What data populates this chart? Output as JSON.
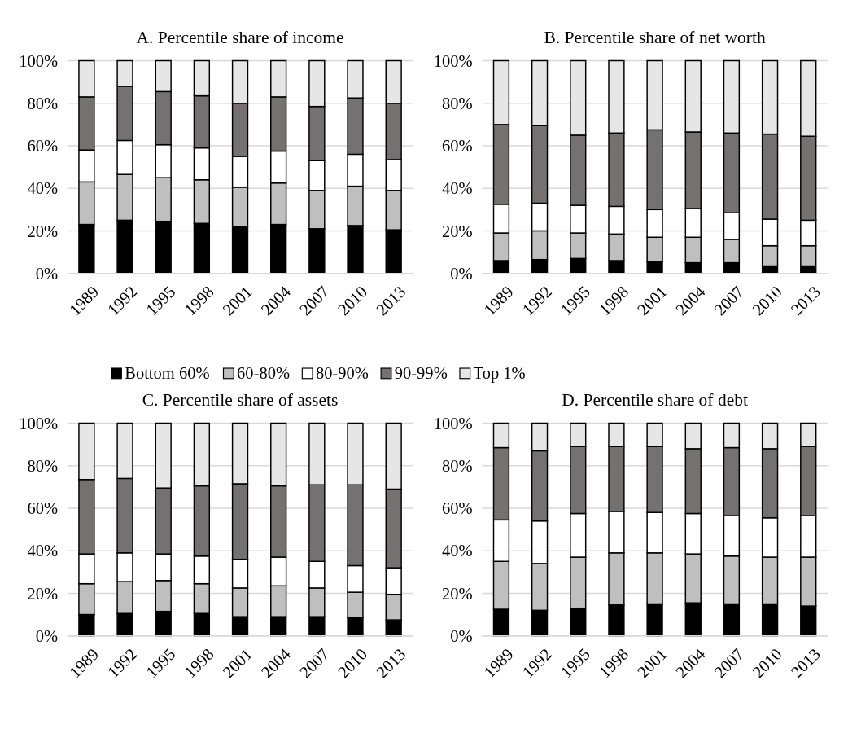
{
  "chart_data": [
    {
      "type": "bar",
      "title": "A. Percentile share of income",
      "stacked": true,
      "categories": [
        "1989",
        "1992",
        "1995",
        "1998",
        "2001",
        "2004",
        "2007",
        "2010",
        "2013"
      ],
      "ylim": [
        0,
        100
      ],
      "yticks": [
        {
          "value": 0,
          "label": "0%"
        },
        {
          "value": 20,
          "label": "20%"
        },
        {
          "value": 40,
          "label": "40%"
        },
        {
          "value": 60,
          "label": "60%"
        },
        {
          "value": 80,
          "label": "80%"
        },
        {
          "value": 100,
          "label": "100%"
        }
      ],
      "grid": "y",
      "legend": "bottom",
      "series": [
        {
          "name": "Bottom 60%",
          "color": "#000000",
          "values": [
            23,
            25,
            24.5,
            23.5,
            22,
            23,
            21,
            22.5,
            20.5
          ]
        },
        {
          "name": "60-80%",
          "color": "#bfbfbf",
          "values": [
            20,
            21.5,
            20.5,
            20.5,
            18.5,
            19.5,
            18,
            18.5,
            18.5
          ]
        },
        {
          "name": "80-90%",
          "color": "#ffffff",
          "values": [
            15,
            16,
            15.5,
            15,
            14.5,
            15,
            14,
            15,
            14.5
          ]
        },
        {
          "name": "90-99%",
          "color": "#767171",
          "values": [
            25,
            25.5,
            25,
            24.5,
            25,
            25.5,
            25.5,
            26.5,
            26.5
          ]
        },
        {
          "name": "Top 1%",
          "color": "#e7e6e6",
          "values": [
            17,
            12,
            14.5,
            16.5,
            20,
            17,
            21.5,
            17.5,
            20
          ]
        }
      ]
    },
    {
      "type": "bar",
      "title": "B. Percentile share of net worth",
      "stacked": true,
      "categories": [
        "1989",
        "1992",
        "1995",
        "1998",
        "2001",
        "2004",
        "2007",
        "2010",
        "2013"
      ],
      "ylim": [
        0,
        100
      ],
      "yticks": [
        {
          "value": 0,
          "label": "0%"
        },
        {
          "value": 20,
          "label": "20%"
        },
        {
          "value": 40,
          "label": "40%"
        },
        {
          "value": 60,
          "label": "60%"
        },
        {
          "value": 80,
          "label": "80%"
        },
        {
          "value": 100,
          "label": "100%"
        }
      ],
      "grid": "y",
      "series": [
        {
          "color": "#000000",
          "values": [
            6,
            6.5,
            7,
            6,
            5.5,
            5,
            5,
            3.5,
            3.5
          ]
        },
        {
          "color": "#bfbfbf",
          "values": [
            13,
            13.5,
            12,
            12.5,
            11.5,
            12,
            11,
            9.5,
            9.5
          ]
        },
        {
          "color": "#ffffff",
          "values": [
            13.5,
            13,
            13,
            13,
            13,
            13.5,
            12.5,
            12.5,
            12
          ]
        },
        {
          "color": "#767171",
          "values": [
            37.5,
            36.5,
            33,
            34.5,
            37.5,
            36,
            37.5,
            40,
            39.5
          ]
        },
        {
          "color": "#e7e6e6",
          "values": [
            30,
            30.5,
            35,
            34,
            32.5,
            33.5,
            34,
            34.5,
            35.5
          ]
        }
      ]
    },
    {
      "type": "bar",
      "title": "C. Percentile share of assets",
      "stacked": true,
      "categories": [
        "1989",
        "1992",
        "1995",
        "1998",
        "2001",
        "2004",
        "2007",
        "2010",
        "2013"
      ],
      "ylim": [
        0,
        100
      ],
      "yticks": [
        {
          "value": 0,
          "label": "0%"
        },
        {
          "value": 20,
          "label": "20%"
        },
        {
          "value": 40,
          "label": "40%"
        },
        {
          "value": 60,
          "label": "60%"
        },
        {
          "value": 80,
          "label": "80%"
        },
        {
          "value": 100,
          "label": "100%"
        }
      ],
      "grid": "y",
      "series": [
        {
          "color": "#000000",
          "values": [
            10,
            10.5,
            11.5,
            10.5,
            9,
            9,
            9,
            8.5,
            7.5
          ]
        },
        {
          "color": "#bfbfbf",
          "values": [
            14.5,
            15,
            14.5,
            14,
            13.5,
            14.5,
            13.5,
            12,
            12
          ]
        },
        {
          "color": "#ffffff",
          "values": [
            14,
            13.5,
            12.5,
            13,
            13.5,
            13.5,
            12.5,
            12.5,
            12.5
          ]
        },
        {
          "color": "#767171",
          "values": [
            35,
            35,
            31,
            33,
            35.5,
            33.5,
            36,
            38,
            37
          ]
        },
        {
          "color": "#e7e6e6",
          "values": [
            26.5,
            26,
            30.5,
            29.5,
            28.5,
            29.5,
            29,
            29,
            31
          ]
        }
      ]
    },
    {
      "type": "bar",
      "title": "D. Percentile share of debt",
      "stacked": true,
      "categories": [
        "1989",
        "1992",
        "1995",
        "1998",
        "2001",
        "2004",
        "2007",
        "2010",
        "2013"
      ],
      "ylim": [
        0,
        100
      ],
      "yticks": [
        {
          "value": 0,
          "label": "0%"
        },
        {
          "value": 20,
          "label": "20%"
        },
        {
          "value": 40,
          "label": "40%"
        },
        {
          "value": 60,
          "label": "60%"
        },
        {
          "value": 80,
          "label": "80%"
        },
        {
          "value": 100,
          "label": "100%"
        }
      ],
      "grid": "y",
      "series": [
        {
          "color": "#000000",
          "values": [
            12.5,
            12,
            13,
            14.5,
            15,
            15.5,
            15,
            15,
            14
          ]
        },
        {
          "color": "#bfbfbf",
          "values": [
            22.5,
            22,
            24,
            24.5,
            24,
            23,
            22.5,
            22,
            23
          ]
        },
        {
          "color": "#ffffff",
          "values": [
            19.5,
            20,
            20.5,
            19.5,
            19,
            19,
            19,
            18.5,
            19.5
          ]
        },
        {
          "color": "#767171",
          "values": [
            34,
            33,
            31.5,
            30.5,
            31,
            30.5,
            32,
            32.5,
            32.5
          ]
        },
        {
          "color": "#e7e6e6",
          "values": [
            11.5,
            13,
            11,
            11,
            11,
            12,
            11.5,
            12,
            11
          ]
        }
      ]
    }
  ]
}
